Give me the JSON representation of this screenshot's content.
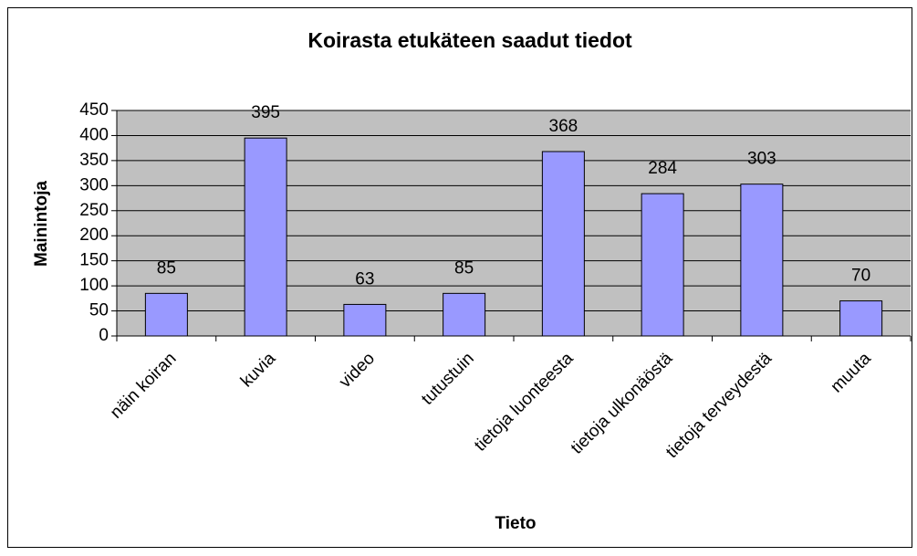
{
  "chart_data": {
    "type": "bar",
    "title": "Koirasta etukäteen saadut tiedot",
    "x_label": "Tieto",
    "y_label": "Mainintoja",
    "categories": [
      "näin koiran",
      "kuvia",
      "video",
      "tutustuin",
      "tietoja luonteesta",
      "tietoja ulkonäöstä",
      "tietoja terveydestä",
      "muuta"
    ],
    "values": [
      85,
      395,
      63,
      85,
      368,
      284,
      303,
      70
    ],
    "color": "#9999ff",
    "ylim": [
      0,
      450
    ],
    "yticks": [
      0,
      50,
      100,
      150,
      200,
      250,
      300,
      350,
      400,
      450
    ],
    "grid": true
  }
}
